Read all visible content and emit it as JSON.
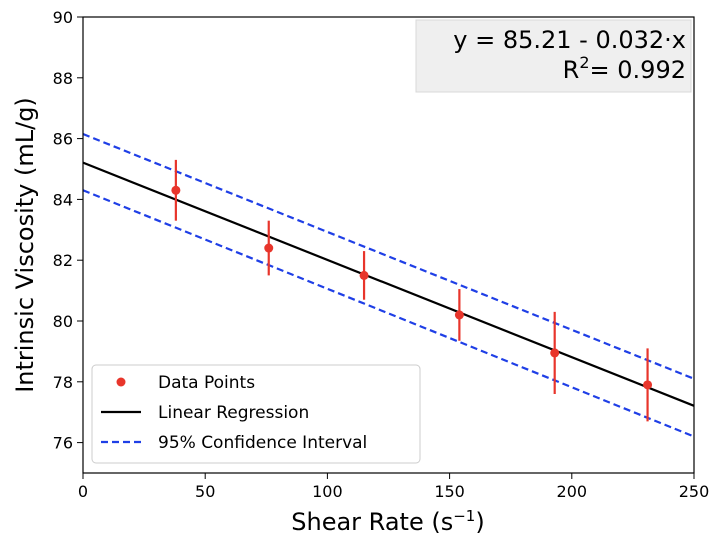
{
  "chart_data": {
    "type": "scatter",
    "xlabel": "Shear Rate",
    "xlabel_unit_base": "s",
    "xlabel_unit_exp": "−1",
    "ylabel": "Intrinsic Viscosity (mL/g)",
    "xlim": [
      0,
      250
    ],
    "ylim": [
      75,
      90
    ],
    "x_ticks": [
      0,
      50,
      100,
      150,
      200,
      250
    ],
    "y_ticks": [
      76,
      78,
      80,
      82,
      84,
      86,
      88,
      90
    ],
    "grid": false,
    "legend_position": "lower-left",
    "annotation": {
      "equation": "y = 85.21 - 0.032·x",
      "r2_prefix": "R",
      "r2_exp": "2",
      "r2_value": "= 0.992",
      "position": "top-right"
    },
    "series": [
      {
        "name": "Data Points",
        "kind": "points_with_error",
        "color": "#e8352b",
        "x": [
          38,
          76,
          115,
          154,
          193,
          231
        ],
        "y": [
          84.3,
          82.4,
          81.5,
          80.2,
          78.95,
          77.9
        ],
        "yerr": [
          1.0,
          0.9,
          0.8,
          0.85,
          1.35,
          1.2
        ]
      },
      {
        "name": "Linear Regression",
        "kind": "line",
        "color": "#000000",
        "intercept": 85.21,
        "slope": -0.032
      },
      {
        "name": "95% Confidence Interval",
        "kind": "dashed_band",
        "color": "#1f3fe6",
        "upper": {
          "x": [
            0,
            250
          ],
          "y": [
            86.15,
            78.1
          ]
        },
        "lower": {
          "x": [
            0,
            250
          ],
          "y": [
            84.3,
            76.2
          ]
        }
      }
    ]
  }
}
